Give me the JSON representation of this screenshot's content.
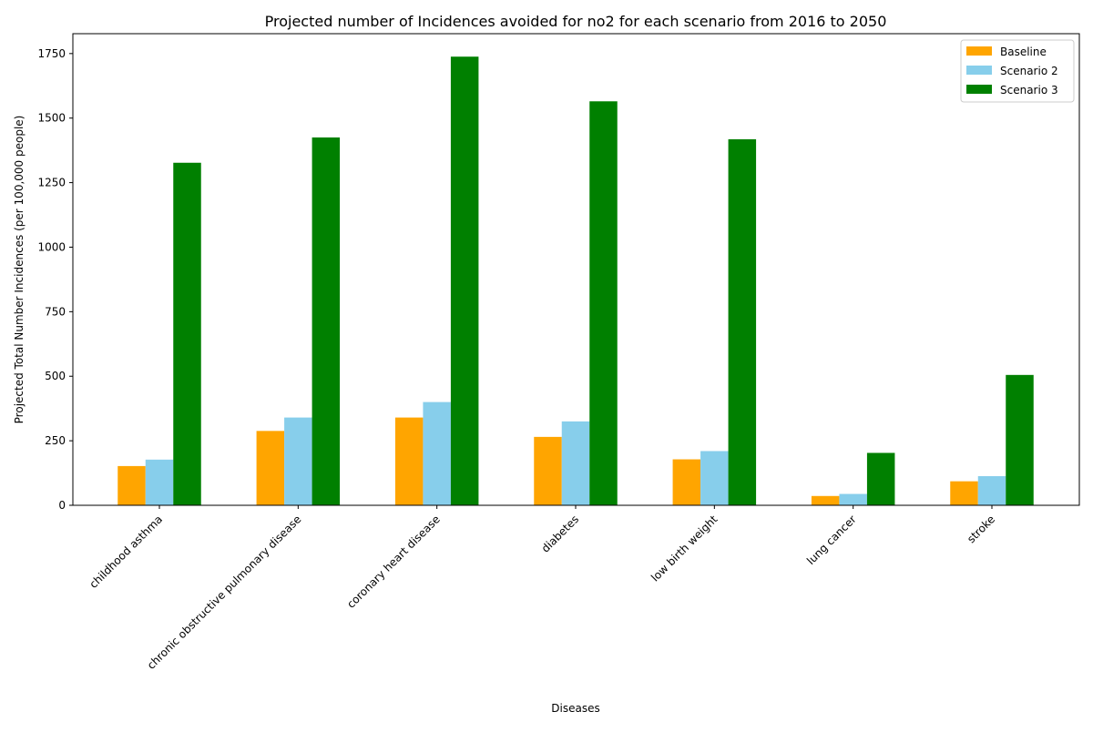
{
  "chart_data": {
    "type": "bar",
    "title": "Projected number of Incidences avoided for no2 for each scenario from 2016 to 2050",
    "xlabel": "Diseases",
    "ylabel": "Projected Total Number Incidences (per 100,000 people)",
    "categories": [
      "childhood asthma",
      "chronic obstructive pulmonary disease",
      "coronary heart disease",
      "diabetes",
      "low birth weight",
      "lung cancer",
      "stroke"
    ],
    "series": [
      {
        "name": "Baseline",
        "color": "#ffa500",
        "values": [
          152,
          288,
          340,
          265,
          178,
          36,
          93
        ]
      },
      {
        "name": "Scenario 2",
        "color": "#87ceeb",
        "values": [
          177,
          340,
          400,
          325,
          210,
          44,
          113
        ]
      },
      {
        "name": "Scenario 3",
        "color": "#008000",
        "values": [
          1327,
          1425,
          1738,
          1565,
          1418,
          203,
          505
        ]
      }
    ],
    "ylim": [
      0,
      1827
    ],
    "yticks": [
      0,
      250,
      500,
      750,
      1000,
      1250,
      1500,
      1750
    ],
    "grid": false,
    "legend_position": "top-right"
  }
}
